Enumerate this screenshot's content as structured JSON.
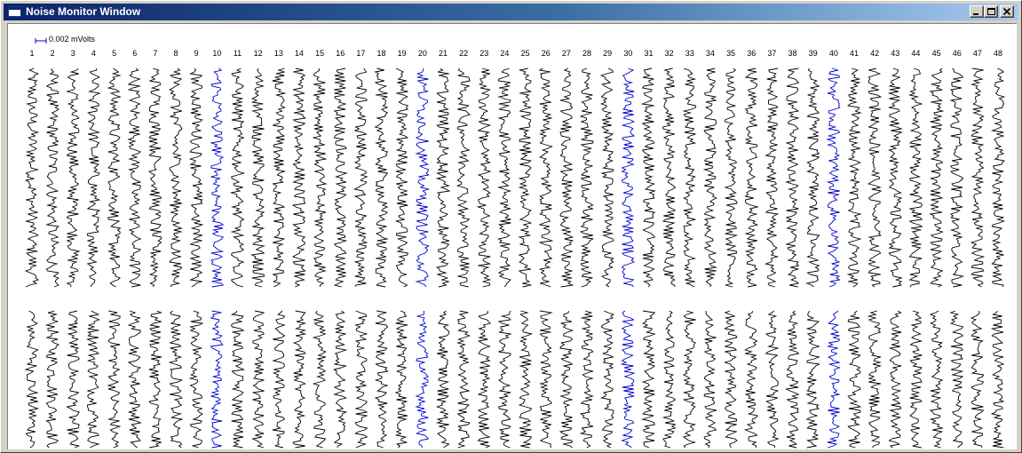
{
  "window": {
    "title": "Noise Monitor Window",
    "icon": "app-window-icon",
    "caption_buttons": [
      {
        "name": "minimize-button",
        "icon": "minimize-icon"
      },
      {
        "name": "maximize-button",
        "icon": "maximize-icon"
      },
      {
        "name": "close-button",
        "icon": "close-icon"
      }
    ]
  },
  "scale": {
    "label": "0.002 mVolts",
    "color": "#0000cc"
  },
  "channels": {
    "labels": [
      "1",
      "2",
      "3",
      "4",
      "5",
      "6",
      "7",
      "8",
      "9",
      "10",
      "11",
      "12",
      "13",
      "14",
      "15",
      "16",
      "17",
      "18",
      "19",
      "20",
      "21",
      "22",
      "23",
      "24",
      "25",
      "26",
      "27",
      "28",
      "29",
      "30",
      "31",
      "32",
      "33",
      "34",
      "35",
      "36",
      "37",
      "38",
      "39",
      "40",
      "41",
      "42",
      "43",
      "44",
      "45",
      "46",
      "47",
      "48"
    ],
    "highlighted": [
      "10",
      "20",
      "30",
      "40"
    ],
    "rows": 2,
    "trace_color": "#000000",
    "highlight_color": "#0000cc"
  }
}
